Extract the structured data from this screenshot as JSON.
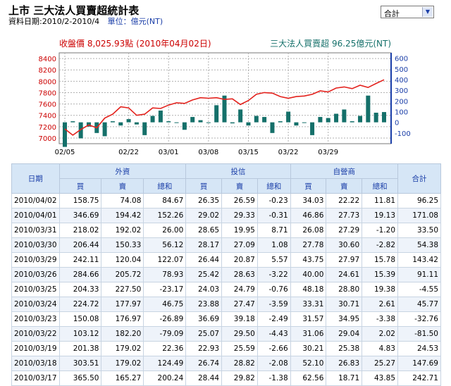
{
  "header": {
    "title": "上市 三大法人買賣超統計表",
    "period_text": "資料日期:2010/2-2010/4",
    "unit_text": "單位：億元(NT)"
  },
  "selector": {
    "value": "合計"
  },
  "chart_data": {
    "type": "line+bar",
    "left_title": "收盤價 8,025.93點 (2010年04月02日)",
    "right_title": "三大法人買賣超 96.25億元(NT)",
    "left_ticks": [
      "8400",
      "8200",
      "8000",
      "7800",
      "7600",
      "7400",
      "7200",
      "7000"
    ],
    "right_ticks": [
      "600",
      "500",
      "400",
      "300",
      "200",
      "100",
      "0",
      "-100"
    ],
    "left_ylim": [
      6900,
      8500
    ],
    "right_ylim": [
      -200,
      650
    ],
    "x_labels": [
      "02/05",
      "02/22",
      "03/01",
      "03/08",
      "03/15",
      "03/22",
      "03/29"
    ],
    "x_label_index": [
      0,
      8,
      13,
      18,
      23,
      28,
      33
    ],
    "colors": {
      "line": "#e3211c",
      "bar": "#15706a",
      "left_axis": "#cc0000",
      "right_axis": "#1a3ea8"
    },
    "series": [
      {
        "name": "收盤價",
        "values": [
          7160,
          7050,
          7150,
          7230,
          7180,
          7350,
          7420,
          7550,
          7530,
          7400,
          7420,
          7530,
          7520,
          7580,
          7620,
          7610,
          7670,
          7710,
          7700,
          7710,
          7680,
          7690,
          7590,
          7660,
          7770,
          7800,
          7790,
          7730,
          7700,
          7730,
          7740,
          7770,
          7830,
          7810,
          7880,
          7900,
          7870,
          7930,
          7890,
          7960,
          8026
        ]
      },
      {
        "name": "三大法人買賣超",
        "values": [
          -230,
          10,
          -150,
          -40,
          -100,
          -130,
          10,
          -30,
          30,
          -20,
          -120,
          60,
          110,
          10,
          0,
          -70,
          50,
          20,
          0,
          160,
          250,
          -10,
          120,
          -30,
          60,
          50,
          -100,
          10,
          100,
          -30,
          0,
          -120,
          50,
          40,
          80,
          120,
          10,
          60,
          250,
          90,
          96
        ]
      }
    ]
  },
  "table": {
    "group_headers": {
      "date": "日期",
      "foreign": "外資",
      "trust": "投信",
      "dealer": "自營商",
      "total": "合計"
    },
    "sub_headers": {
      "buy": "買",
      "sell": "賣",
      "net": "總和"
    },
    "rows": [
      [
        "2010/04/02",
        "158.75",
        "74.08",
        "84.67",
        "26.35",
        "26.59",
        "-0.23",
        "34.03",
        "22.22",
        "11.81",
        "96.25"
      ],
      [
        "2010/04/01",
        "346.69",
        "194.42",
        "152.26",
        "29.02",
        "29.33",
        "-0.31",
        "46.86",
        "27.73",
        "19.13",
        "171.08"
      ],
      [
        "2010/03/31",
        "218.02",
        "192.02",
        "26.00",
        "28.65",
        "19.95",
        "8.71",
        "26.08",
        "27.29",
        "-1.20",
        "33.50"
      ],
      [
        "2010/03/30",
        "206.44",
        "150.33",
        "56.12",
        "28.17",
        "27.09",
        "1.08",
        "27.78",
        "30.60",
        "-2.82",
        "54.38"
      ],
      [
        "2010/03/29",
        "242.11",
        "120.04",
        "122.07",
        "26.44",
        "20.87",
        "5.57",
        "43.75",
        "27.97",
        "15.78",
        "143.42"
      ],
      [
        "2010/03/26",
        "284.66",
        "205.72",
        "78.93",
        "25.42",
        "28.63",
        "-3.22",
        "40.00",
        "24.61",
        "15.39",
        "91.11"
      ],
      [
        "2010/03/25",
        "204.33",
        "227.50",
        "-23.17",
        "24.03",
        "24.79",
        "-0.76",
        "48.18",
        "28.80",
        "19.38",
        "-4.55"
      ],
      [
        "2010/03/24",
        "224.72",
        "177.97",
        "46.75",
        "23.88",
        "27.47",
        "-3.59",
        "33.31",
        "30.71",
        "2.61",
        "45.77"
      ],
      [
        "2010/03/23",
        "150.08",
        "176.97",
        "-26.89",
        "36.69",
        "39.18",
        "-2.49",
        "31.57",
        "34.95",
        "-3.38",
        "-32.76"
      ],
      [
        "2010/03/22",
        "103.12",
        "182.20",
        "-79.09",
        "25.07",
        "29.50",
        "-4.43",
        "31.06",
        "29.04",
        "2.02",
        "-81.50"
      ],
      [
        "2010/03/19",
        "201.38",
        "179.02",
        "22.36",
        "22.93",
        "25.59",
        "-2.66",
        "30.21",
        "25.38",
        "4.83",
        "24.53"
      ],
      [
        "2010/03/18",
        "303.51",
        "179.02",
        "124.49",
        "26.74",
        "28.82",
        "-2.08",
        "52.10",
        "26.83",
        "25.27",
        "147.69"
      ],
      [
        "2010/03/17",
        "365.50",
        "165.27",
        "200.24",
        "28.44",
        "29.82",
        "-1.38",
        "62.56",
        "18.71",
        "43.85",
        "242.71"
      ]
    ]
  }
}
